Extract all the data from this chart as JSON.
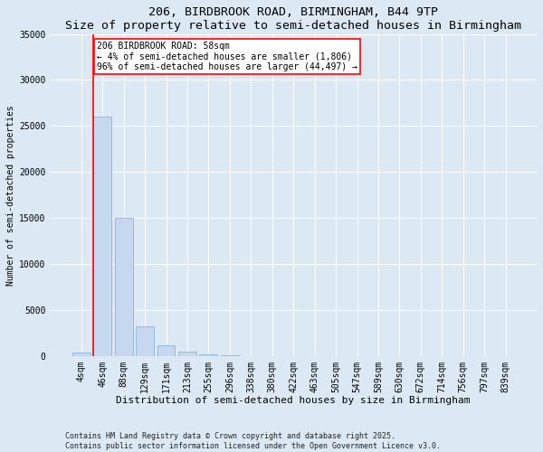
{
  "title1": "206, BIRDBROOK ROAD, BIRMINGHAM, B44 9TP",
  "title2": "Size of property relative to semi-detached houses in Birmingham",
  "xlabel": "Distribution of semi-detached houses by size in Birmingham",
  "ylabel": "Number of semi-detached properties",
  "categories": [
    "4sqm",
    "46sqm",
    "88sqm",
    "129sqm",
    "171sqm",
    "213sqm",
    "255sqm",
    "296sqm",
    "338sqm",
    "380sqm",
    "422sqm",
    "463sqm",
    "505sqm",
    "547sqm",
    "589sqm",
    "630sqm",
    "672sqm",
    "714sqm",
    "756sqm",
    "797sqm",
    "839sqm"
  ],
  "bar_values": [
    400,
    26000,
    15000,
    3200,
    1200,
    450,
    200,
    50,
    0,
    0,
    0,
    0,
    0,
    0,
    0,
    0,
    0,
    0,
    0,
    0,
    0
  ],
  "bar_color": "#c5d8f0",
  "bar_edge_color": "#7aaddb",
  "vline_color": "red",
  "annotation_text": "206 BIRDBROOK ROAD: 58sqm\n← 4% of semi-detached houses are smaller (1,806)\n96% of semi-detached houses are larger (44,497) →",
  "annotation_box_color": "white",
  "annotation_box_edge": "red",
  "ylim": [
    0,
    35000
  ],
  "yticks": [
    0,
    5000,
    10000,
    15000,
    20000,
    25000,
    30000,
    35000
  ],
  "bg_color": "#dce9f5",
  "footer": "Contains HM Land Registry data © Crown copyright and database right 2025.\nContains public sector information licensed under the Open Government Licence v3.0.",
  "title1_fontsize": 9.5,
  "title2_fontsize": 8.5,
  "xlabel_fontsize": 8,
  "ylabel_fontsize": 7,
  "tick_fontsize": 7,
  "annot_fontsize": 7,
  "footer_fontsize": 6
}
